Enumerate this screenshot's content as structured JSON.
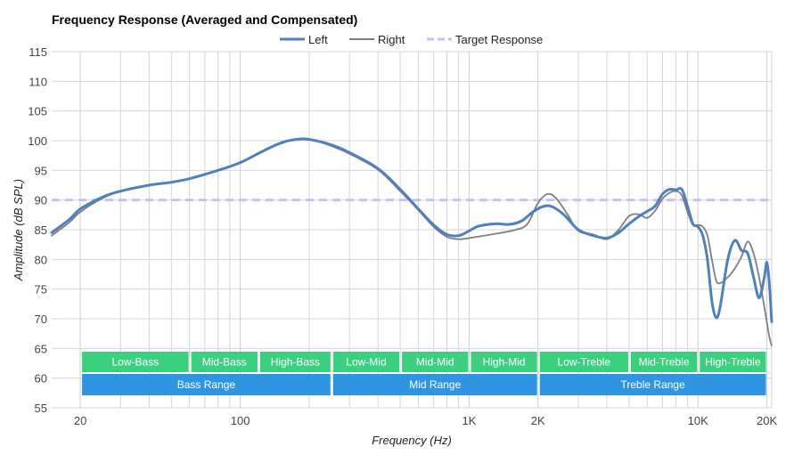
{
  "chart_data": {
    "type": "line",
    "title": "Frequency Response (Averaged and Compensated)",
    "xlabel": "Frequency (Hz)",
    "ylabel": "Amplitude (dB SPL)",
    "xscale": "log",
    "xlim": [
      15,
      21000
    ],
    "ylim": [
      55,
      115
    ],
    "yticks": [
      55,
      60,
      65,
      70,
      75,
      80,
      85,
      90,
      95,
      100,
      105,
      110,
      115
    ],
    "xticks": [
      {
        "value": 20,
        "label": "20"
      },
      {
        "value": 100,
        "label": "100"
      },
      {
        "value": 1000,
        "label": "1K"
      },
      {
        "value": 2000,
        "label": "2K"
      },
      {
        "value": 10000,
        "label": "10K"
      },
      {
        "value": 20000,
        "label": "20K"
      }
    ],
    "minor_gridlines": [
      30,
      40,
      50,
      60,
      70,
      80,
      90,
      200,
      300,
      400,
      500,
      600,
      700,
      800,
      900,
      3000,
      4000,
      5000,
      6000,
      7000,
      8000,
      9000
    ],
    "legend": {
      "position": "top-center",
      "entries": [
        {
          "name": "Left",
          "color": "#4f81bd",
          "style": "solid"
        },
        {
          "name": "Right",
          "color": "#7f7f7f",
          "style": "solid"
        },
        {
          "name": "Target Response",
          "color": "#c3c3f5",
          "style": "dashed"
        }
      ]
    },
    "series": [
      {
        "name": "Left",
        "color": "#4f81bd",
        "points": [
          [
            15,
            84.5
          ],
          [
            18,
            86.8
          ],
          [
            20,
            88.5
          ],
          [
            25,
            90.5
          ],
          [
            30,
            91.5
          ],
          [
            40,
            92.5
          ],
          [
            50,
            93
          ],
          [
            60,
            93.6
          ],
          [
            80,
            95
          ],
          [
            100,
            96.3
          ],
          [
            125,
            98.2
          ],
          [
            150,
            99.6
          ],
          [
            175,
            100.2
          ],
          [
            200,
            100.2
          ],
          [
            250,
            99.3
          ],
          [
            300,
            98
          ],
          [
            400,
            95.3
          ],
          [
            500,
            91.8
          ],
          [
            600,
            88.5
          ],
          [
            700,
            85.8
          ],
          [
            800,
            84.2
          ],
          [
            900,
            84
          ],
          [
            1000,
            84.8
          ],
          [
            1100,
            85.6
          ],
          [
            1300,
            86
          ],
          [
            1500,
            85.9
          ],
          [
            1700,
            86.5
          ],
          [
            1900,
            88
          ],
          [
            2100,
            88.9
          ],
          [
            2300,
            88.9
          ],
          [
            2600,
            87.5
          ],
          [
            3000,
            85
          ],
          [
            3500,
            84
          ],
          [
            4000,
            83.6
          ],
          [
            4500,
            84.5
          ],
          [
            5000,
            86
          ],
          [
            5500,
            87.2
          ],
          [
            6000,
            88.1
          ],
          [
            6500,
            89
          ],
          [
            7000,
            91
          ],
          [
            7500,
            91.8
          ],
          [
            8000,
            91.7
          ],
          [
            8500,
            91.8
          ],
          [
            9000,
            89
          ],
          [
            9500,
            86
          ],
          [
            10000,
            85.5
          ],
          [
            10500,
            84
          ],
          [
            11000,
            80
          ],
          [
            11500,
            73
          ],
          [
            12000,
            70.2
          ],
          [
            12500,
            72
          ],
          [
            13500,
            80
          ],
          [
            14500,
            83.2
          ],
          [
            15500,
            81.5
          ],
          [
            16500,
            81
          ],
          [
            17500,
            77
          ],
          [
            18500,
            73.5
          ],
          [
            19500,
            77
          ],
          [
            20000,
            79.5
          ],
          [
            20500,
            76
          ],
          [
            21000,
            69.5
          ]
        ]
      },
      {
        "name": "Right",
        "color": "#7f7f7f",
        "points": [
          [
            15,
            84
          ],
          [
            18,
            86.3
          ],
          [
            20,
            88
          ],
          [
            25,
            90.3
          ],
          [
            30,
            91.5
          ],
          [
            40,
            92.5
          ],
          [
            50,
            93
          ],
          [
            60,
            93.6
          ],
          [
            80,
            95
          ],
          [
            100,
            96.3
          ],
          [
            125,
            98.2
          ],
          [
            150,
            99.6
          ],
          [
            175,
            100.2
          ],
          [
            200,
            100.3
          ],
          [
            250,
            99.1
          ],
          [
            300,
            97.8
          ],
          [
            400,
            95.1
          ],
          [
            500,
            91.5
          ],
          [
            600,
            88.3
          ],
          [
            700,
            85.5
          ],
          [
            800,
            83.8
          ],
          [
            900,
            83.4
          ],
          [
            1000,
            83.6
          ],
          [
            1300,
            84.3
          ],
          [
            1600,
            85
          ],
          [
            1800,
            86
          ],
          [
            2000,
            89.5
          ],
          [
            2200,
            91
          ],
          [
            2400,
            90.3
          ],
          [
            2700,
            87.5
          ],
          [
            3000,
            84.8
          ],
          [
            3500,
            84.2
          ],
          [
            4000,
            83.4
          ],
          [
            4500,
            85
          ],
          [
            5000,
            87.3
          ],
          [
            5500,
            87.6
          ],
          [
            6000,
            87
          ],
          [
            6500,
            88.2
          ],
          [
            7000,
            90.2
          ],
          [
            7500,
            91.2
          ],
          [
            8000,
            91.5
          ],
          [
            8500,
            90.8
          ],
          [
            9000,
            88
          ],
          [
            9500,
            85.8
          ],
          [
            10000,
            85.8
          ],
          [
            10500,
            85.5
          ],
          [
            11000,
            84
          ],
          [
            11500,
            80
          ],
          [
            12000,
            76.5
          ],
          [
            12500,
            76
          ],
          [
            13500,
            77
          ],
          [
            14500,
            78.5
          ],
          [
            15500,
            80.5
          ],
          [
            16500,
            83
          ],
          [
            17500,
            81
          ],
          [
            18500,
            77
          ],
          [
            19500,
            72
          ],
          [
            20500,
            67
          ],
          [
            21000,
            65.5
          ]
        ]
      },
      {
        "name": "Target Response",
        "color": "#c3c3f5",
        "points": [
          [
            15,
            90
          ],
          [
            21000,
            90
          ]
        ]
      }
    ],
    "bands": [
      {
        "row": 1,
        "color": "#3ccf7f",
        "items": [
          {
            "label": "Low-Bass",
            "from": 20,
            "to": 60
          },
          {
            "label": "Mid-Bass",
            "from": 60,
            "to": 120
          },
          {
            "label": "High-Bass",
            "from": 120,
            "to": 250
          },
          {
            "label": "Low-Mid",
            "from": 250,
            "to": 500
          },
          {
            "label": "Mid-Mid",
            "from": 500,
            "to": 1000
          },
          {
            "label": "High-Mid",
            "from": 1000,
            "to": 2000
          },
          {
            "label": "Low-Treble",
            "from": 2000,
            "to": 5000
          },
          {
            "label": "Mid-Treble",
            "from": 5000,
            "to": 10000
          },
          {
            "label": "High-Treble",
            "from": 10000,
            "to": 20000
          }
        ]
      },
      {
        "row": 2,
        "color": "#2f95e0",
        "items": [
          {
            "label": "Bass Range",
            "from": 20,
            "to": 250
          },
          {
            "label": "Mid Range",
            "from": 250,
            "to": 2000
          },
          {
            "label": "Treble Range",
            "from": 2000,
            "to": 20000
          }
        ]
      }
    ]
  }
}
